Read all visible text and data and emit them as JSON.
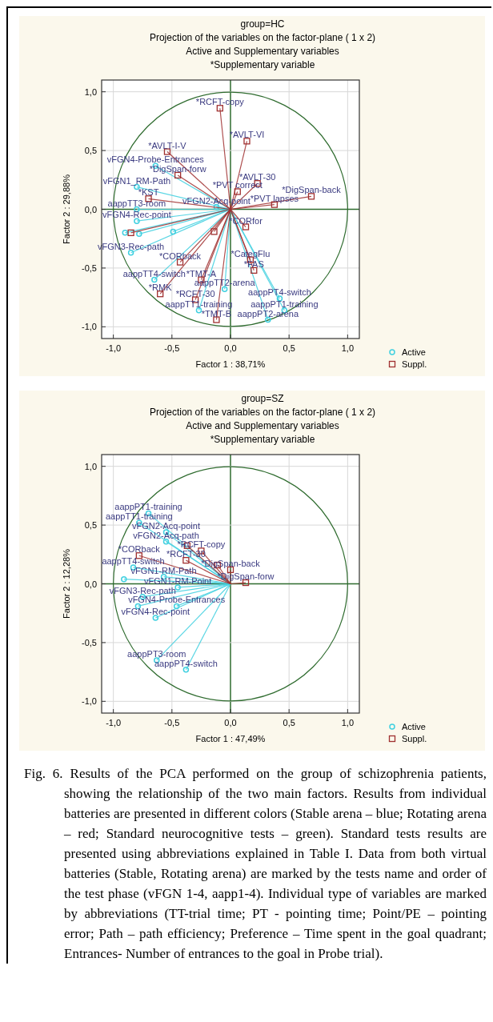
{
  "chart_data": [
    {
      "type": "scatter",
      "title": "group=HC",
      "subtitle": "Projection of the variables on the factor-plane (  1 x   2)\nActive and Supplementary variables\n*Supplementary variable",
      "xlabel": "Factor 1 : 38,71%",
      "ylabel": "Factor 2 : 29,88%",
      "xlim": [
        -1.1,
        1.1
      ],
      "ylim": [
        -1.1,
        1.1
      ],
      "xticks": [
        {
          "value": -1,
          "label": "-1,0"
        },
        {
          "value": -0.5,
          "label": "-0,5"
        },
        {
          "value": 0,
          "label": "0,0"
        },
        {
          "value": 0.5,
          "label": "0,5"
        },
        {
          "value": 1,
          "label": "1,0"
        }
      ],
      "yticks": [
        {
          "value": -1,
          "label": "-1,0"
        },
        {
          "value": -0.5,
          "label": "-0,5"
        },
        {
          "value": 0,
          "label": "0,0"
        },
        {
          "value": 0.5,
          "label": "0,5"
        },
        {
          "value": 1,
          "label": "1,0"
        }
      ],
      "grid": true,
      "legend": "bottom right",
      "series": [
        {
          "name": "Active",
          "color": "#40d0e0",
          "marker": "circle",
          "x": [
            -0.64,
            -0.8,
            -0.8,
            -0.12,
            -0.8,
            -0.85,
            -0.65,
            -0.05,
            -0.27,
            0.42,
            0.46,
            0.32,
            -0.9,
            -0.78,
            -0.49
          ],
          "values": [
            0.37,
            0.19,
            0,
            0.02,
            -0.1,
            -0.37,
            -0.6,
            -0.68,
            -0.86,
            -0.76,
            -0.86,
            -0.94,
            -0.2,
            -0.21,
            -0.19
          ]
        },
        {
          "name": "Suppl.",
          "color": "#a03030",
          "marker": "square",
          "x": [
            -0.09,
            0.14,
            -0.54,
            -0.45,
            -0.7,
            0.23,
            0.06,
            0.69,
            0.375,
            0.13,
            -0.43,
            0.17,
            -0.25,
            0.2,
            -0.6,
            -0.3,
            -0.12,
            -0.85,
            -0.14
          ],
          "values": [
            0.86,
            0.58,
            0.49,
            0.29,
            0.09,
            0.22,
            0.15,
            0.11,
            0.04,
            -0.15,
            -0.45,
            -0.43,
            -0.6,
            -0.52,
            -0.72,
            -0.77,
            -0.94,
            -0.2,
            -0.19
          ]
        }
      ],
      "annotations": [
        {
          "text": "*RCFT-copy",
          "x": -0.09,
          "y": 0.86
        },
        {
          "text": "*AVLT-VI",
          "x": 0.14,
          "y": 0.58
        },
        {
          "text": "*AVLT-I-V",
          "x": -0.54,
          "y": 0.49
        },
        {
          "text": "vFGN4-Probe-Entrances",
          "x": -0.64,
          "y": 0.37
        },
        {
          "text": "*DigSpan-forw",
          "x": -0.45,
          "y": 0.29
        },
        {
          "text": "vFGN1_RM-Path",
          "x": -0.8,
          "y": 0.19
        },
        {
          "text": "*KST",
          "x": -0.7,
          "y": 0.09
        },
        {
          "text": "aappTT3-room",
          "x": -0.8,
          "y": 0
        },
        {
          "text": "vFGN2-Acq-point",
          "x": -0.12,
          "y": 0.02
        },
        {
          "text": "*AVLT-30",
          "x": 0.23,
          "y": 0.22
        },
        {
          "text": "*PVT correct",
          "x": 0.06,
          "y": 0.15
        },
        {
          "text": "*DigSpan-back",
          "x": 0.69,
          "y": 0.11
        },
        {
          "text": "*PVT lapses",
          "x": 0.375,
          "y": 0.04
        },
        {
          "text": "vFGN4-Rec-point",
          "x": -0.8,
          "y": -0.1
        },
        {
          "text": "*CORfor",
          "x": 0.13,
          "y": -0.15
        },
        {
          "text": "vFGN3-Rec-path",
          "x": -0.85,
          "y": -0.37
        },
        {
          "text": "*CORback",
          "x": -0.43,
          "y": -0.45
        },
        {
          "text": "*CategFlu",
          "x": 0.17,
          "y": -0.43
        },
        {
          "text": "*TMT-A",
          "x": -0.25,
          "y": -0.6
        },
        {
          "text": "*FAS",
          "x": 0.2,
          "y": -0.52
        },
        {
          "text": "aappTT4-switch",
          "x": -0.65,
          "y": -0.6
        },
        {
          "text": "aappTT2-arena",
          "x": -0.05,
          "y": -0.68
        },
        {
          "text": "*RMK",
          "x": -0.6,
          "y": -0.72
        },
        {
          "text": "*RCFT-30",
          "x": -0.3,
          "y": -0.77
        },
        {
          "text": "aappTT1-training",
          "x": -0.27,
          "y": -0.86
        },
        {
          "text": "aappPT4-switch",
          "x": 0.42,
          "y": -0.76
        },
        {
          "text": "aappPT1-training",
          "x": 0.46,
          "y": -0.86
        },
        {
          "text": "*TMT-B",
          "x": -0.12,
          "y": -0.94
        },
        {
          "text": "aappPT2-arena",
          "x": 0.32,
          "y": -0.94
        }
      ]
    },
    {
      "type": "scatter",
      "title": "group=SZ",
      "subtitle": "Projection of the variables on the factor-plane (  1 x   2)\nActive and Supplementary variables\n*Supplementary variable",
      "xlabel": "Factor 1 : 47,49%",
      "ylabel": "Factor 2 : 12,28%",
      "xlim": [
        -1.1,
        1.1
      ],
      "ylim": [
        -1.1,
        1.1
      ],
      "xticks": [
        {
          "value": -1,
          "label": "-1,0"
        },
        {
          "value": -0.5,
          "label": "-0,5"
        },
        {
          "value": 0,
          "label": "0,0"
        },
        {
          "value": 0.5,
          "label": "0,5"
        },
        {
          "value": 1,
          "label": "1,0"
        }
      ],
      "yticks": [
        {
          "value": -1,
          "label": "-1,0"
        },
        {
          "value": -0.5,
          "label": "-0,5"
        },
        {
          "value": 0,
          "label": "0,0"
        },
        {
          "value": 0.5,
          "label": "0,5"
        },
        {
          "value": 1,
          "label": "1,0"
        }
      ],
      "grid": true,
      "legend": "bottom right",
      "series": [
        {
          "name": "Active",
          "color": "#40d0e0",
          "marker": "circle",
          "x": [
            -0.7,
            -0.78,
            -0.55,
            -0.55,
            -0.83,
            -0.57,
            -0.45,
            -0.75,
            -0.46,
            -0.64,
            -0.63,
            -0.38,
            -0.91,
            -0.79
          ],
          "values": [
            0.6,
            0.52,
            0.44,
            0.36,
            0.14,
            0.06,
            -0.03,
            -0.11,
            -0.19,
            -0.29,
            -0.65,
            -0.73,
            0.04,
            -0.19
          ]
        },
        {
          "name": "Suppl.",
          "color": "#a03030",
          "marker": "square",
          "x": [
            -0.25,
            -0.78,
            -0.38,
            0,
            0.13,
            -0.37,
            -0.11
          ],
          "values": [
            0.28,
            0.24,
            0.2,
            0.12,
            0.01,
            0.325,
            0.16
          ]
        }
      ],
      "annotations": [
        {
          "text": "aappPT1-training",
          "x": -0.7,
          "y": 0.6
        },
        {
          "text": "aappTT1-training",
          "x": -0.78,
          "y": 0.52
        },
        {
          "text": "vFGN2-Acq-point",
          "x": -0.55,
          "y": 0.44
        },
        {
          "text": "vFGN2-Acq-path",
          "x": -0.55,
          "y": 0.36
        },
        {
          "text": "*RCFT-copy",
          "x": -0.25,
          "y": 0.28
        },
        {
          "text": "*CORback",
          "x": -0.78,
          "y": 0.24
        },
        {
          "text": "*RCFT-30",
          "x": -0.38,
          "y": 0.2
        },
        {
          "text": "*DigSpan-back",
          "x": 0,
          "y": 0.12
        },
        {
          "text": "aappTT4-switch",
          "x": -0.83,
          "y": 0.14
        },
        {
          "text": "vFGN1-RM-Path",
          "x": -0.57,
          "y": 0.06
        },
        {
          "text": "*DigSpan-forw",
          "x": 0.13,
          "y": 0.01
        },
        {
          "text": "vFGN1-RM-Point",
          "x": -0.45,
          "y": -0.03
        },
        {
          "text": "vFGN3-Rec-path",
          "x": -0.75,
          "y": -0.11
        },
        {
          "text": "vFGN4-Probe-Entrances",
          "x": -0.46,
          "y": -0.19
        },
        {
          "text": "vFGN4-Rec-point",
          "x": -0.64,
          "y": -0.29
        },
        {
          "text": "aappPT3-room",
          "x": -0.63,
          "y": -0.65
        },
        {
          "text": "aappPT4-switch",
          "x": -0.38,
          "y": -0.73
        },
        "Fig. 6. Results of the PCA performed on the group of schizophrenia patients, showing the relationship of the two main factors.  Results from individual batteries are presented in different colors (Stable arena – blue; Rotating arena – red; Standard neurocognitive tests – green). Standard tests results are presented using abbreviations explained in Table I. Data from both virtual batteries (Stable, Rotating arena) are marked by the tests name and order of the test phase (vFGN 1-4, aapp1-4). Individual type of variables are marked by abbreviations (TT-trial time; PT -  pointing time; Point/PE – pointing error; Path – path efficiency; Preference – Time spent in the goal quadrant; Entrances- Number of entrances to the goal in Probe trial)."
      ]
    }
  ]
}
